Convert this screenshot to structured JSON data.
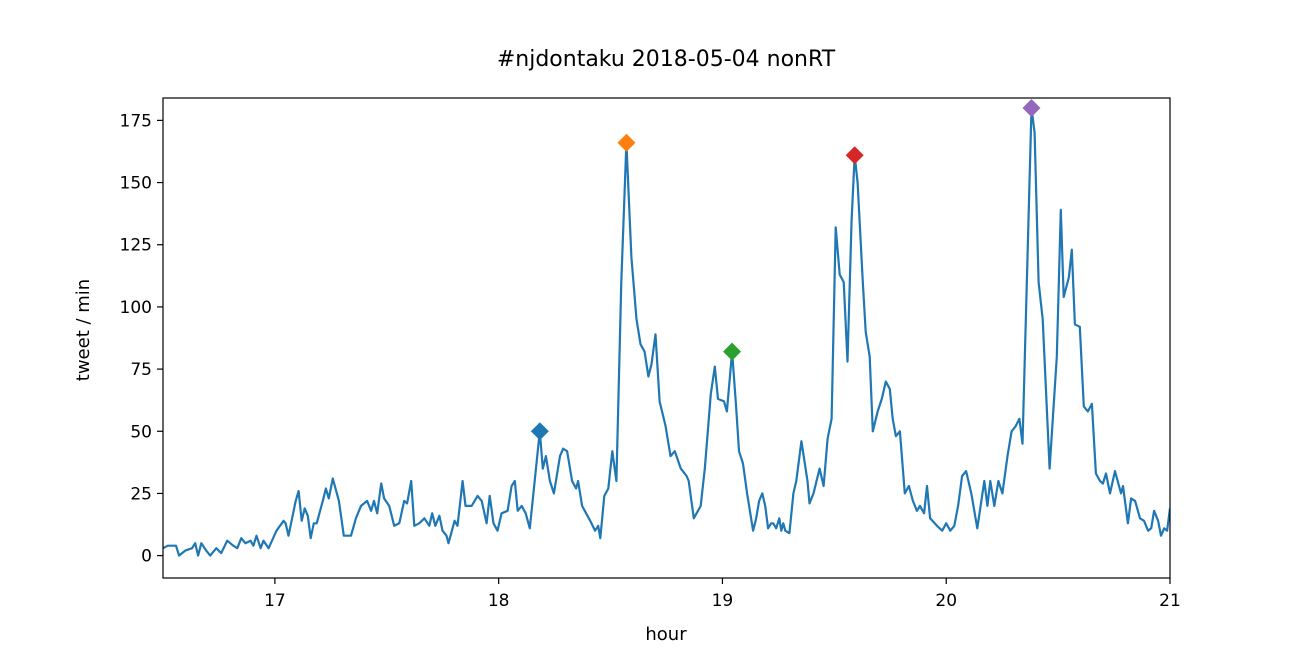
{
  "chart_data": {
    "type": "line",
    "title": "#njdontaku 2018-05-04 nonRT",
    "xlabel": "hour",
    "ylabel": "tweet / min",
    "xlim": [
      16.5,
      21
    ],
    "ylim": [
      -9,
      184
    ],
    "xticks": [
      17,
      18,
      19,
      20,
      21
    ],
    "yticks": [
      0,
      25,
      50,
      75,
      100,
      125,
      150,
      175
    ],
    "grid": false,
    "series": [
      {
        "name": "tweet / min",
        "color": "#1f77b4",
        "x": [
          16.5,
          16.522,
          16.558,
          16.572,
          16.599,
          16.63,
          16.644,
          16.657,
          16.671,
          16.693,
          16.711,
          16.738,
          16.76,
          16.787,
          16.814,
          16.832,
          16.85,
          16.868,
          16.891,
          16.904,
          16.918,
          16.936,
          16.949,
          16.972,
          17.007,
          17.039,
          17.048,
          17.061,
          17.093,
          17.106,
          17.12,
          17.133,
          17.147,
          17.16,
          17.174,
          17.187,
          17.214,
          17.228,
          17.241,
          17.259,
          17.286,
          17.308,
          17.331,
          17.34,
          17.362,
          17.385,
          17.412,
          17.43,
          17.443,
          17.457,
          17.475,
          17.488,
          17.511,
          17.533,
          17.556,
          17.578,
          17.591,
          17.609,
          17.623,
          17.645,
          17.668,
          17.69,
          17.703,
          17.717,
          17.735,
          17.749,
          17.767,
          17.776,
          17.803,
          17.816,
          17.839,
          17.852,
          17.879,
          17.906,
          17.924,
          17.946,
          17.96,
          17.977,
          17.995,
          18.013,
          18.04,
          18.058,
          18.072,
          18.085,
          18.103,
          18.121,
          18.139,
          18.184,
          18.197,
          18.211,
          18.229,
          18.247,
          18.274,
          18.288,
          18.306,
          18.328,
          18.346,
          18.355,
          18.373,
          18.409,
          18.431,
          18.445,
          18.454,
          18.472,
          18.49,
          18.508,
          18.526,
          18.548,
          18.571,
          18.593,
          18.616,
          18.634,
          18.652,
          18.669,
          18.683,
          18.701,
          18.719,
          18.746,
          18.768,
          18.787,
          18.814,
          18.84,
          18.849,
          18.872,
          18.903,
          18.921,
          18.948,
          18.966,
          18.98,
          19.007,
          19.02,
          19.043,
          19.061,
          19.074,
          19.092,
          19.11,
          19.137,
          19.151,
          19.164,
          19.178,
          19.191,
          19.204,
          19.218,
          19.227,
          19.24,
          19.254,
          19.263,
          19.272,
          19.281,
          19.299,
          19.317,
          19.33,
          19.353,
          19.38,
          19.389,
          19.407,
          19.434,
          19.452,
          19.47,
          19.488,
          19.506,
          19.524,
          19.542,
          19.559,
          19.577,
          19.591,
          19.604,
          19.627,
          19.64,
          19.658,
          19.672,
          19.694,
          19.712,
          19.73,
          19.748,
          19.761,
          19.775,
          19.793,
          19.815,
          19.833,
          19.851,
          19.869,
          19.883,
          19.901,
          19.914,
          19.928,
          19.959,
          19.982,
          20.0,
          20.018,
          20.036,
          20.053,
          20.071,
          20.089,
          20.112,
          20.139,
          20.17,
          20.184,
          20.197,
          20.215,
          20.233,
          20.251,
          20.274,
          20.292,
          20.31,
          20.327,
          20.341,
          20.381,
          20.395,
          20.413,
          20.431,
          20.462,
          20.494,
          20.512,
          20.525,
          20.548,
          20.561,
          20.575,
          20.597,
          20.615,
          20.633,
          20.651,
          20.669,
          20.687,
          20.7,
          20.714,
          20.732,
          20.754,
          20.781,
          20.79,
          20.812,
          20.826,
          20.844,
          20.866,
          20.884,
          20.902,
          20.916,
          20.929,
          20.947,
          20.96,
          20.974,
          20.987,
          21.0
        ],
        "y": [
          3,
          4,
          4,
          0,
          2,
          3,
          5,
          0,
          5,
          2,
          0,
          3,
          1,
          6,
          4,
          3,
          7,
          5,
          6,
          4,
          8,
          3,
          6,
          3,
          10,
          14,
          13,
          8,
          22,
          26,
          14,
          19,
          16,
          7,
          13,
          13,
          22,
          27,
          23,
          31,
          22,
          8,
          8,
          8,
          15,
          20,
          22,
          18,
          22,
          17,
          29,
          23,
          20,
          12,
          13,
          22,
          21,
          30,
          12,
          13,
          15,
          12,
          17,
          12,
          16,
          10,
          8,
          5,
          14,
          12,
          30,
          20,
          20,
          24,
          22,
          13,
          24,
          13,
          10,
          17,
          18,
          28,
          30,
          18,
          20,
          17,
          11,
          50,
          35,
          40,
          30,
          25,
          40,
          43,
          42,
          30,
          27,
          30,
          20,
          14,
          10,
          12,
          7,
          24,
          27,
          42,
          30,
          110,
          166,
          120,
          95,
          85,
          82,
          72,
          77,
          89,
          62,
          52,
          40,
          42,
          35,
          32,
          30,
          15,
          20,
          35,
          65,
          76,
          63,
          62,
          58,
          82,
          60,
          42,
          37,
          25,
          10,
          15,
          22,
          25,
          20,
          11,
          13,
          13,
          11,
          15,
          10,
          13,
          10,
          9,
          25,
          30,
          46,
          30,
          21,
          25,
          35,
          28,
          47,
          55,
          132,
          113,
          110,
          78,
          135,
          161,
          150,
          110,
          90,
          80,
          50,
          58,
          63,
          70,
          67,
          55,
          48,
          50,
          25,
          28,
          22,
          18,
          20,
          17,
          28,
          15,
          12,
          10,
          13,
          10,
          12,
          20,
          32,
          34,
          25,
          11,
          30,
          20,
          30,
          20,
          30,
          25,
          40,
          50,
          52,
          55,
          45,
          180,
          170,
          110,
          95,
          35,
          80,
          139,
          104,
          112,
          123,
          93,
          92,
          60,
          58,
          61,
          33,
          30,
          29,
          33,
          25,
          34,
          25,
          28,
          13,
          23,
          22,
          15,
          14,
          10,
          11,
          18,
          14,
          8,
          11,
          10,
          19
        ]
      }
    ],
    "markers": [
      {
        "x": 18.184,
        "y": 50,
        "color": "#1f77b4",
        "shape": "diamond"
      },
      {
        "x": 18.571,
        "y": 166,
        "color": "#ff7f0e",
        "shape": "diamond"
      },
      {
        "x": 19.043,
        "y": 82,
        "color": "#2ca02c",
        "shape": "diamond"
      },
      {
        "x": 19.591,
        "y": 161,
        "color": "#d62728",
        "shape": "diamond"
      },
      {
        "x": 20.381,
        "y": 180,
        "color": "#9467bd",
        "shape": "diamond"
      }
    ]
  }
}
